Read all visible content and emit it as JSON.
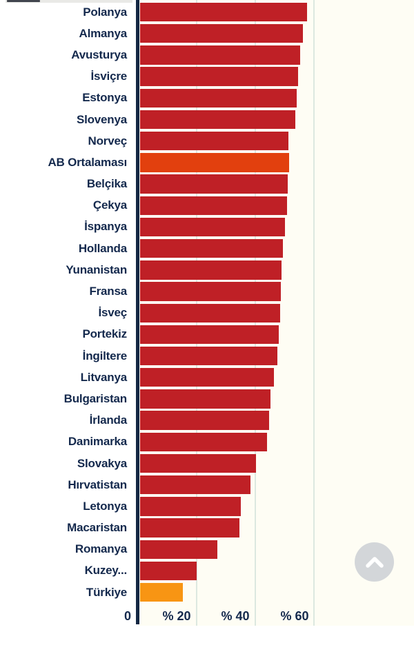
{
  "chart_data": {
    "type": "bar",
    "orientation": "horizontal",
    "title": "",
    "xlabel": "",
    "ylabel": "",
    "categories": [
      "Polanya",
      "Almanya",
      "Avusturya",
      "İsviçre",
      "Estonya",
      "Slovenya",
      "Norveç",
      "AB Ortalaması",
      "Belçika",
      "Çekya",
      "İspanya",
      "Hollanda",
      "Yunanistan",
      "Fransa",
      "İsveç",
      "Portekiz",
      "İngiltere",
      "Litvanya",
      "Bulgaristan",
      "İrlanda",
      "Danimarka",
      "Slovakya",
      "Hırvatistan",
      "Letonya",
      "Macaristan",
      "Romanya",
      "Kuzey...",
      "Türkiye"
    ],
    "values": [
      57.0,
      55.5,
      54.6,
      53.9,
      53.4,
      52.9,
      50.5,
      50.8,
      50.3,
      50.0,
      49.4,
      48.6,
      48.2,
      48.0,
      47.8,
      47.3,
      46.8,
      45.6,
      44.4,
      44.1,
      43.2,
      39.5,
      37.6,
      34.4,
      33.8,
      26.3,
      19.3,
      14.5
    ],
    "highlight_indices": {
      "ab_average": 7,
      "turkiye": 27
    },
    "x_ticks": [
      "0",
      "% 20",
      "% 40",
      "% 60"
    ],
    "x_tick_values": [
      0,
      20,
      40,
      60
    ],
    "xlim": [
      0,
      93.6
    ],
    "grid": true,
    "legend": "none"
  },
  "colors": {
    "bar_default": "#bf2026",
    "bar_ab_average": "#e2400e",
    "bar_turkiye": "#f89513",
    "label_text": "#14294d",
    "axis_line": "#132743",
    "gridline": "#dce8e0",
    "tick_text": "#14294d"
  },
  "floating_button": {
    "icon": "chevron-up-icon",
    "action": "scroll-to-top"
  }
}
